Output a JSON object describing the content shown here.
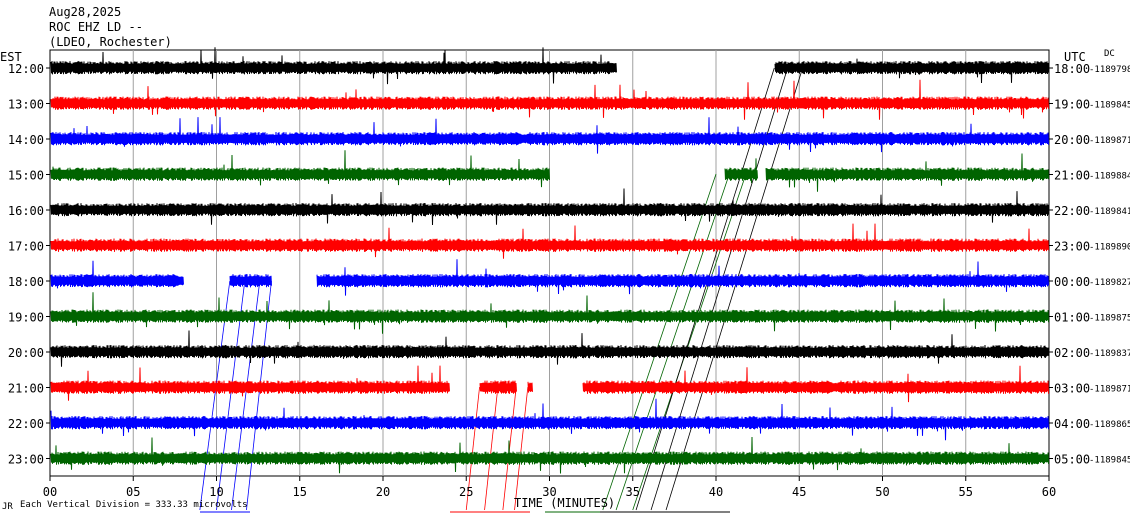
{
  "header": {
    "date": "Aug28,2025",
    "station": "ROC EHZ LD --",
    "network": "(LDEO, Rochester)"
  },
  "chart_data": {
    "type": "line",
    "title": "",
    "xlabel": "TIME (MINUTES)",
    "x_ticks": [
      "00",
      "05",
      "10",
      "15",
      "20",
      "25",
      "30",
      "35",
      "40",
      "45",
      "50",
      "55",
      "60"
    ],
    "xlim": [
      0,
      60
    ],
    "left_axis_label": "EST",
    "right_axis_label": "UTC",
    "dc_label": "DC",
    "grid": true,
    "rows": [
      {
        "est": "12:00",
        "utc": "18:00",
        "dc": "-1189798",
        "color": "#000000",
        "gaps": [
          [
            34,
            43.5
          ]
        ]
      },
      {
        "est": "13:00",
        "utc": "19:00",
        "dc": "-1189845",
        "color": "#ff0000",
        "gaps": []
      },
      {
        "est": "14:00",
        "utc": "20:00",
        "dc": "-1189871",
        "color": "#0000ff",
        "gaps": []
      },
      {
        "est": "15:00",
        "utc": "21:00",
        "dc": "-1189884",
        "color": "#006400",
        "gaps": [
          [
            30,
            40.5
          ],
          [
            42.5,
            43
          ]
        ]
      },
      {
        "est": "16:00",
        "utc": "22:00",
        "dc": "-1189841",
        "color": "#000000",
        "gaps": []
      },
      {
        "est": "17:00",
        "utc": "23:00",
        "dc": "-1189890",
        "color": "#ff0000",
        "gaps": []
      },
      {
        "est": "18:00",
        "utc": "00:00",
        "dc": "-1189827",
        "color": "#0000ff",
        "gaps": [
          [
            8,
            10.8
          ],
          [
            13.3,
            16
          ]
        ]
      },
      {
        "est": "19:00",
        "utc": "01:00",
        "dc": "-1189875",
        "color": "#006400",
        "gaps": []
      },
      {
        "est": "20:00",
        "utc": "02:00",
        "dc": "-1189837",
        "color": "#000000",
        "gaps": []
      },
      {
        "est": "21:00",
        "utc": "03:00",
        "dc": "-1189871",
        "color": "#ff0000",
        "gaps": [
          [
            24,
            25.8
          ],
          [
            28,
            28.7
          ],
          [
            29,
            32
          ]
        ]
      },
      {
        "est": "22:00",
        "utc": "04:00",
        "dc": "-1189865",
        "color": "#0000ff",
        "gaps": []
      },
      {
        "est": "23:00",
        "utc": "05:00",
        "dc": "-1189845",
        "color": "#006400",
        "gaps": []
      }
    ]
  },
  "footer": {
    "scale_text": "Each Vertical Division =  333.33 microvolts",
    "corner_mark": "JR"
  }
}
